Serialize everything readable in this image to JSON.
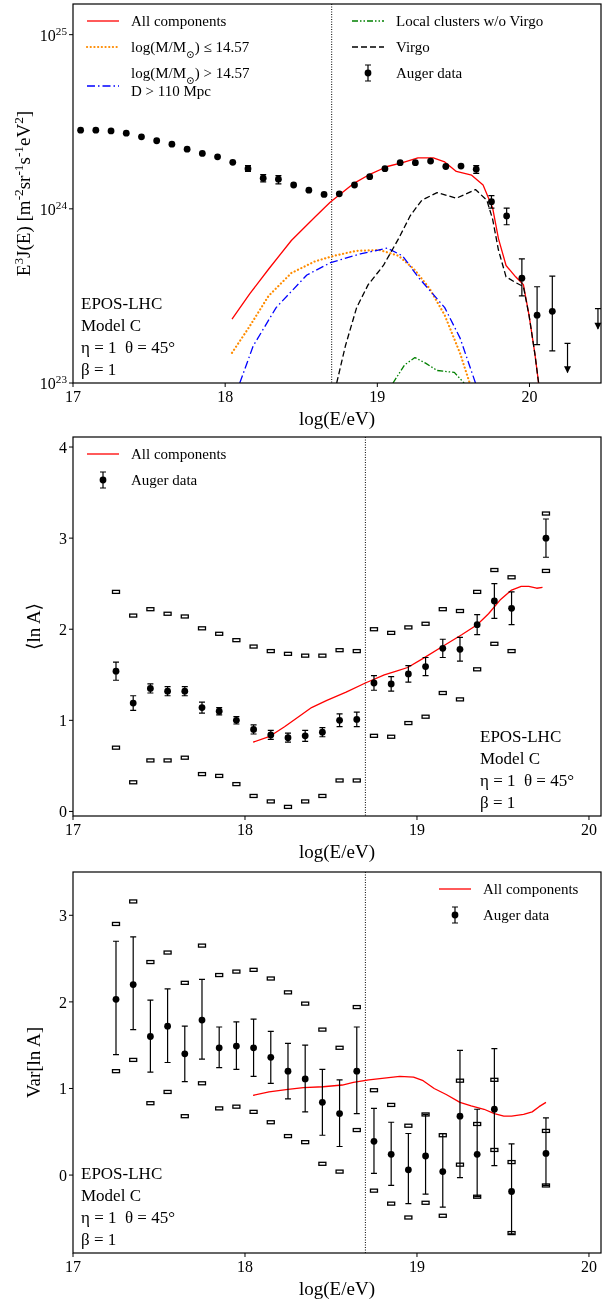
{
  "chart_data": [
    {
      "type": "line",
      "xlabel": "log(E/eV)",
      "ylabel": "E$^{3}$J(E) [m$^{-2}$sr$^{-1}$s$^{-1}$eV$^{2}$]",
      "log": "y",
      "xlim": [
        17,
        20.47
      ],
      "ylim": [
        1e+23,
        1.5e+25
      ],
      "xticks": [
        17,
        18,
        19,
        20
      ],
      "yticks": [
        {
          "value": 1e+23,
          "label": "10$^{23}$"
        },
        {
          "value": 1e+24,
          "label": "10$^{24}$"
        },
        {
          "value": 1e+25,
          "label": "10$^{25}$"
        }
      ],
      "legend": "top",
      "annotations": [
        "EPOS-LHC",
        "Model C",
        "η = 1  θ = 45°",
        "β = 1"
      ],
      "ref_lines": [
        {
          "axis": "x",
          "value": 18.7,
          "color": "#000000",
          "line_style": "dotted"
        }
      ],
      "series": [
        {
          "name": "All components",
          "color": "#ff0000",
          "line_style": "solid",
          "x": [
            18.045,
            18.16,
            18.285,
            18.435,
            18.587,
            18.69,
            18.84,
            18.94,
            19.065,
            19.166,
            19.267,
            19.368,
            19.443,
            19.519,
            19.62,
            19.695,
            19.758,
            19.796,
            19.846,
            19.909,
            19.96,
            19.997,
            20.035,
            20.06
          ],
          "values": [
            2.33e+23,
            3.24e+23,
            4.5e+23,
            6.58e+23,
            8.92e+23,
            1.09e+24,
            1.39e+24,
            1.56e+24,
            1.75e+24,
            1.84e+24,
            1.96e+24,
            1.96e+24,
            1.86e+24,
            1.64e+24,
            1.56e+24,
            1.37e+24,
            1.01e+24,
            6.75e+23,
            4.73e+23,
            4.07e+23,
            3.67e+23,
            2.45e+23,
            1.48e+23,
            1e+23
          ]
        },
        {
          "name": "log(M/M$_{⊙}$) ≤ 14.57",
          "color": "#ff8c00",
          "line_style": "dotted",
          "x": [
            18.045,
            18.16,
            18.285,
            18.435,
            18.587,
            18.713,
            18.864,
            19.015,
            19.14,
            19.242,
            19.343,
            19.443,
            19.544,
            19.607
          ],
          "values": [
            1.49e+23,
            2.11e+23,
            3.16e+23,
            4.28e+23,
            4.98e+23,
            5.37e+23,
            5.74e+23,
            5.8e+23,
            5.37e+23,
            4.5e+23,
            3.49e+23,
            2.45e+23,
            1.48e+23,
            1e+23
          ]
        },
        {
          "name": "log(M/M$_{⊙}$) > 14.57\nD > 110 Mpc",
          "color": "#0000ff",
          "line_style": "dashdot",
          "x": [
            18.096,
            18.184,
            18.335,
            18.537,
            18.693,
            18.889,
            19.065,
            19.166,
            19.267,
            19.355,
            19.443,
            19.544,
            19.645
          ],
          "values": [
            1e+23,
            1.63e+23,
            2.71e+23,
            4.17e+23,
            4.91e+23,
            5.51e+23,
            5.95e+23,
            5.37e+23,
            4.07e+23,
            3.32e+23,
            2.71e+23,
            1.81e+23,
            1e+23
          ]
        },
        {
          "name": "Local clusters w/o Virgo",
          "color": "#008000",
          "line_style": "dashdotdot",
          "x": [
            19.103,
            19.179,
            19.247,
            19.317,
            19.393,
            19.506,
            19.57
          ],
          "values": [
            1e+23,
            1.27e+23,
            1.4e+23,
            1.3e+23,
            1.18e+23,
            1.15e+23,
            1e+23
          ]
        },
        {
          "name": "Virgo",
          "color": "#000000",
          "line_style": "dashed",
          "x": [
            18.733,
            18.79,
            18.864,
            18.94,
            19.04,
            19.14,
            19.217,
            19.292,
            19.393,
            19.519,
            19.645,
            19.72,
            19.758,
            19.796,
            19.846,
            19.909,
            19.96,
            19.997,
            20.035,
            20.06
          ],
          "values": [
            1e+23,
            1.63e+23,
            2.71e+23,
            3.67e+23,
            4.73e+23,
            6.75e+23,
            9.15e+23,
            1.12e+24,
            1.24e+24,
            1.15e+24,
            1.29e+24,
            1.12e+24,
            8.7e+23,
            5.8e+23,
            4.07e+23,
            3.77e+23,
            3.58e+23,
            2.45e+23,
            1.48e+23,
            1e+23
          ]
        },
        {
          "name": "Auger data",
          "type": "scatter",
          "color": "#000000",
          "marker": "circle",
          "x": [
            17.05,
            17.15,
            17.25,
            17.35,
            17.45,
            17.55,
            17.65,
            17.75,
            17.85,
            17.95,
            18.05,
            18.15,
            18.25,
            18.35,
            18.45,
            18.55,
            18.65,
            18.75,
            18.85,
            18.95,
            19.05,
            19.15,
            19.25,
            19.35,
            19.45,
            19.55,
            19.65,
            19.75,
            19.85,
            19.95,
            20.05,
            20.15
          ],
          "values": [
            2.83e+24,
            2.83e+24,
            2.8e+24,
            2.72e+24,
            2.59e+24,
            2.46e+24,
            2.35e+24,
            2.2e+24,
            2.08e+24,
            1.99e+24,
            1.85e+24,
            1.7e+24,
            1.5e+24,
            1.48e+24,
            1.37e+24,
            1.28e+24,
            1.21e+24,
            1.22e+24,
            1.37e+24,
            1.53e+24,
            1.7e+24,
            1.84e+24,
            1.84e+24,
            1.88e+24,
            1.75e+24,
            1.76e+24,
            1.69e+24,
            1.1e+24,
            9.1e+23,
            4e+23,
            2.45e+23,
            2.58e+23
          ],
          "errors": [
            null,
            null,
            null,
            null,
            null,
            null,
            null,
            null,
            null,
            null,
            null,
            [
              1.64e+24,
              1.77e+24
            ],
            [
              1.43e+24,
              1.57e+24
            ],
            [
              1.39e+24,
              1.55e+24
            ],
            null,
            null,
            null,
            null,
            null,
            null,
            null,
            null,
            null,
            null,
            null,
            null,
            [
              1.6e+24,
              1.77e+24
            ],
            [
              1.01e+24,
              1.19e+24
            ],
            [
              8.1e+23,
              1.01e+24
            ],
            [
              3.16e+23,
              5.16e+23
            ],
            [
              1.66e+23,
              3.57e+23
            ],
            [
              1.53e+23,
              4.11e+23
            ]
          ]
        },
        {
          "type": "scatter",
          "color": "#000000",
          "marker": "triangle",
          "x": [
            20.25,
            20.45
          ],
          "values": [
            1.2e+23,
            2.13e+23
          ],
          "errors": [
            [
              1.15e+23,
              1.69e+23
            ],
            [
              2.05e+23,
              2.67e+23
            ]
          ]
        }
      ]
    },
    {
      "type": "line",
      "xlabel": "log(E/eV)",
      "ylabel": "⟨ln A⟩",
      "xlim": [
        17,
        20.07
      ],
      "ylim": [
        -0.05,
        4.11
      ],
      "xticks": [
        17,
        18,
        19,
        20
      ],
      "yticks": [
        0,
        1,
        2,
        3,
        4
      ],
      "legend": "top left",
      "annotations": [
        "EPOS-LHC",
        "Model C",
        "η = 1  θ = 45°",
        "β = 1"
      ],
      "ref_lines": [
        {
          "axis": "x",
          "value": 18.7,
          "color": "#000000",
          "line_style": "dotted"
        }
      ],
      "series": [
        {
          "name": "All components",
          "color": "#ff0000",
          "line_style": "solid",
          "x": [
            18.047,
            18.14,
            18.23,
            18.32,
            18.387,
            18.476,
            18.588,
            18.7,
            18.81,
            18.88,
            18.946,
            19.036,
            19.148,
            19.26,
            19.35,
            19.416,
            19.483,
            19.55,
            19.606,
            19.65,
            19.696,
            19.73
          ],
          "values": [
            0.76,
            0.82,
            0.93,
            1.05,
            1.14,
            1.22,
            1.31,
            1.41,
            1.5,
            1.54,
            1.58,
            1.68,
            1.81,
            1.94,
            2.05,
            2.17,
            2.32,
            2.43,
            2.47,
            2.47,
            2.45,
            2.46
          ]
        },
        {
          "name": "Auger data",
          "type": "scatter",
          "color": "#000000",
          "marker": "circle",
          "x": [
            17.25,
            17.35,
            17.45,
            17.55,
            17.65,
            17.75,
            17.85,
            17.95,
            18.05,
            18.15,
            18.25,
            18.35,
            18.45,
            18.55,
            18.65,
            18.75,
            18.85,
            18.95,
            19.05,
            19.15,
            19.25,
            19.35,
            19.45,
            19.55,
            19.75
          ],
          "values": [
            1.54,
            1.19,
            1.35,
            1.32,
            1.32,
            1.14,
            1.1,
            1.0,
            0.9,
            0.84,
            0.81,
            0.83,
            0.87,
            1.0,
            1.01,
            1.41,
            1.4,
            1.51,
            1.59,
            1.79,
            1.78,
            2.05,
            2.31,
            2.23,
            3.0
          ],
          "errors": [
            0.1,
            0.08,
            0.05,
            0.05,
            0.05,
            0.06,
            0.04,
            0.04,
            0.05,
            0.05,
            0.05,
            0.06,
            0.05,
            0.07,
            0.08,
            0.08,
            0.08,
            0.09,
            0.1,
            0.1,
            0.13,
            0.11,
            0.19,
            0.18,
            0.21
          ]
        },
        {
          "type": "scatter",
          "color": "#000000",
          "marker": "square",
          "x": [
            17.25,
            17.35,
            17.45,
            17.55,
            17.65,
            17.75,
            17.85,
            17.95,
            18.05,
            18.15,
            18.25,
            18.35,
            18.45,
            18.55,
            18.65,
            18.75,
            18.85,
            18.95,
            19.05,
            19.15,
            19.25,
            19.35,
            19.45,
            19.55,
            19.75
          ],
          "values": [
            2.41,
            2.15,
            2.22,
            2.17,
            2.14,
            2.01,
            1.95,
            1.88,
            1.81,
            1.76,
            1.73,
            1.71,
            1.71,
            1.77,
            1.76,
            2.0,
            1.96,
            2.02,
            2.06,
            2.22,
            2.2,
            2.41,
            2.65,
            2.57,
            3.27
          ]
        },
        {
          "type": "scatter",
          "color": "#000000",
          "marker": "square",
          "x": [
            17.25,
            17.35,
            17.45,
            17.55,
            17.65,
            17.75,
            17.85,
            17.95,
            18.05,
            18.15,
            18.25,
            18.35,
            18.45,
            18.55,
            18.65,
            18.75,
            18.85,
            18.95,
            19.05,
            19.15,
            19.25,
            19.35,
            19.45,
            19.55,
            19.75
          ],
          "values": [
            0.7,
            0.32,
            0.56,
            0.56,
            0.59,
            0.41,
            0.39,
            0.3,
            0.17,
            0.11,
            0.05,
            0.11,
            0.17,
            0.34,
            0.34,
            0.83,
            0.82,
            0.97,
            1.04,
            1.3,
            1.23,
            1.56,
            1.84,
            1.76,
            2.64
          ]
        }
      ]
    },
    {
      "type": "line",
      "xlabel": "log(E/eV)",
      "ylabel": "Var[ln A]",
      "xlim": [
        17,
        20.07
      ],
      "ylim": [
        -0.9,
        3.5
      ],
      "xticks": [
        17,
        18,
        19,
        20
      ],
      "yticks": [
        0,
        1,
        2,
        3
      ],
      "legend": "top right",
      "annotations": [
        "EPOS-LHC",
        "Model C",
        "η = 1  θ = 45°",
        "β = 1"
      ],
      "ref_lines": [
        {
          "axis": "x",
          "value": 18.7,
          "color": "#000000",
          "line_style": "dotted"
        }
      ],
      "series": [
        {
          "name": "All components",
          "color": "#ff0000",
          "line_style": "solid",
          "x": [
            18.047,
            18.14,
            18.25,
            18.34,
            18.454,
            18.566,
            18.63,
            18.72,
            18.81,
            18.9,
            18.98,
            19.036,
            19.1,
            19.17,
            19.25,
            19.315,
            19.39,
            19.45,
            19.505,
            19.55,
            19.62,
            19.67,
            19.71,
            19.75
          ],
          "values": [
            0.92,
            0.96,
            0.99,
            1.01,
            1.02,
            1.04,
            1.07,
            1.1,
            1.12,
            1.14,
            1.13,
            1.09,
            1.0,
            0.93,
            0.84,
            0.8,
            0.76,
            0.71,
            0.68,
            0.68,
            0.7,
            0.73,
            0.79,
            0.84
          ]
        },
        {
          "name": "Auger data",
          "type": "scatter",
          "color": "#000000",
          "marker": "circle",
          "x": [
            17.25,
            17.35,
            17.45,
            17.55,
            17.65,
            17.75,
            17.85,
            17.95,
            18.05,
            18.15,
            18.25,
            18.35,
            18.45,
            18.55,
            18.65,
            18.75,
            18.85,
            18.95,
            19.05,
            19.15,
            19.25,
            19.35,
            19.45,
            19.55,
            19.75
          ],
          "values": [
            2.03,
            2.2,
            1.6,
            1.72,
            1.4,
            1.79,
            1.47,
            1.49,
            1.47,
            1.36,
            1.2,
            1.11,
            0.84,
            0.71,
            1.2,
            0.39,
            0.24,
            0.06,
            0.22,
            0.04,
            0.68,
            0.24,
            0.76,
            -0.19,
            0.25
          ],
          "errors": [
            [
              1.39,
              2.7
            ],
            [
              1.68,
              2.75
            ],
            [
              1.19,
              2.02
            ],
            [
              1.3,
              2.15
            ],
            [
              1.08,
              1.72
            ],
            [
              1.34,
              2.26
            ],
            [
              1.24,
              1.71
            ],
            [
              1.22,
              1.77
            ],
            [
              1.14,
              1.8
            ],
            [
              1.06,
              1.66
            ],
            [
              0.88,
              1.52
            ],
            [
              0.73,
              1.5
            ],
            [
              0.46,
              1.22
            ],
            [
              0.33,
              1.1
            ],
            [
              0.71,
              1.71
            ],
            [
              0.02,
              0.77
            ],
            [
              -0.12,
              0.61
            ],
            [
              -0.33,
              0.48
            ],
            [
              -0.22,
              0.7
            ],
            [
              -0.37,
              0.48
            ],
            [
              -0.03,
              1.44
            ],
            [
              -0.25,
              0.76
            ],
            [
              0.11,
              1.46
            ],
            [
              -0.68,
              0.36
            ],
            [
              -0.12,
              0.66
            ]
          ]
        },
        {
          "type": "scatter",
          "color": "#000000",
          "marker": "square",
          "x": [
            17.25,
            17.35,
            17.45,
            17.55,
            17.65,
            17.75,
            17.85,
            17.95,
            18.05,
            18.15,
            18.25,
            18.35,
            18.45,
            18.55,
            18.65,
            18.75,
            18.85,
            18.95,
            19.05,
            19.15,
            19.25,
            19.35,
            19.45,
            19.55,
            19.75
          ],
          "values": [
            2.9,
            3.16,
            2.46,
            2.57,
            2.22,
            2.65,
            2.31,
            2.35,
            2.37,
            2.27,
            2.11,
            1.98,
            1.68,
            1.47,
            1.94,
            0.98,
            0.81,
            0.57,
            0.7,
            0.46,
            1.09,
            0.59,
            1.1,
            0.15,
            0.51
          ]
        },
        {
          "type": "scatter",
          "color": "#000000",
          "marker": "square",
          "x": [
            17.25,
            17.35,
            17.45,
            17.55,
            17.65,
            17.75,
            17.85,
            17.95,
            18.05,
            18.15,
            18.25,
            18.35,
            18.45,
            18.55,
            18.65,
            18.75,
            18.85,
            18.95,
            19.05,
            19.15,
            19.25,
            19.35,
            19.45,
            19.55,
            19.75
          ],
          "values": [
            1.2,
            1.33,
            0.83,
            0.96,
            0.68,
            1.06,
            0.77,
            0.79,
            0.73,
            0.61,
            0.45,
            0.38,
            0.13,
            0.04,
            0.52,
            -0.18,
            -0.33,
            -0.49,
            -0.32,
            -0.47,
            0.12,
            -0.25,
            0.29,
            -0.67,
            -0.12
          ]
        }
      ]
    }
  ]
}
